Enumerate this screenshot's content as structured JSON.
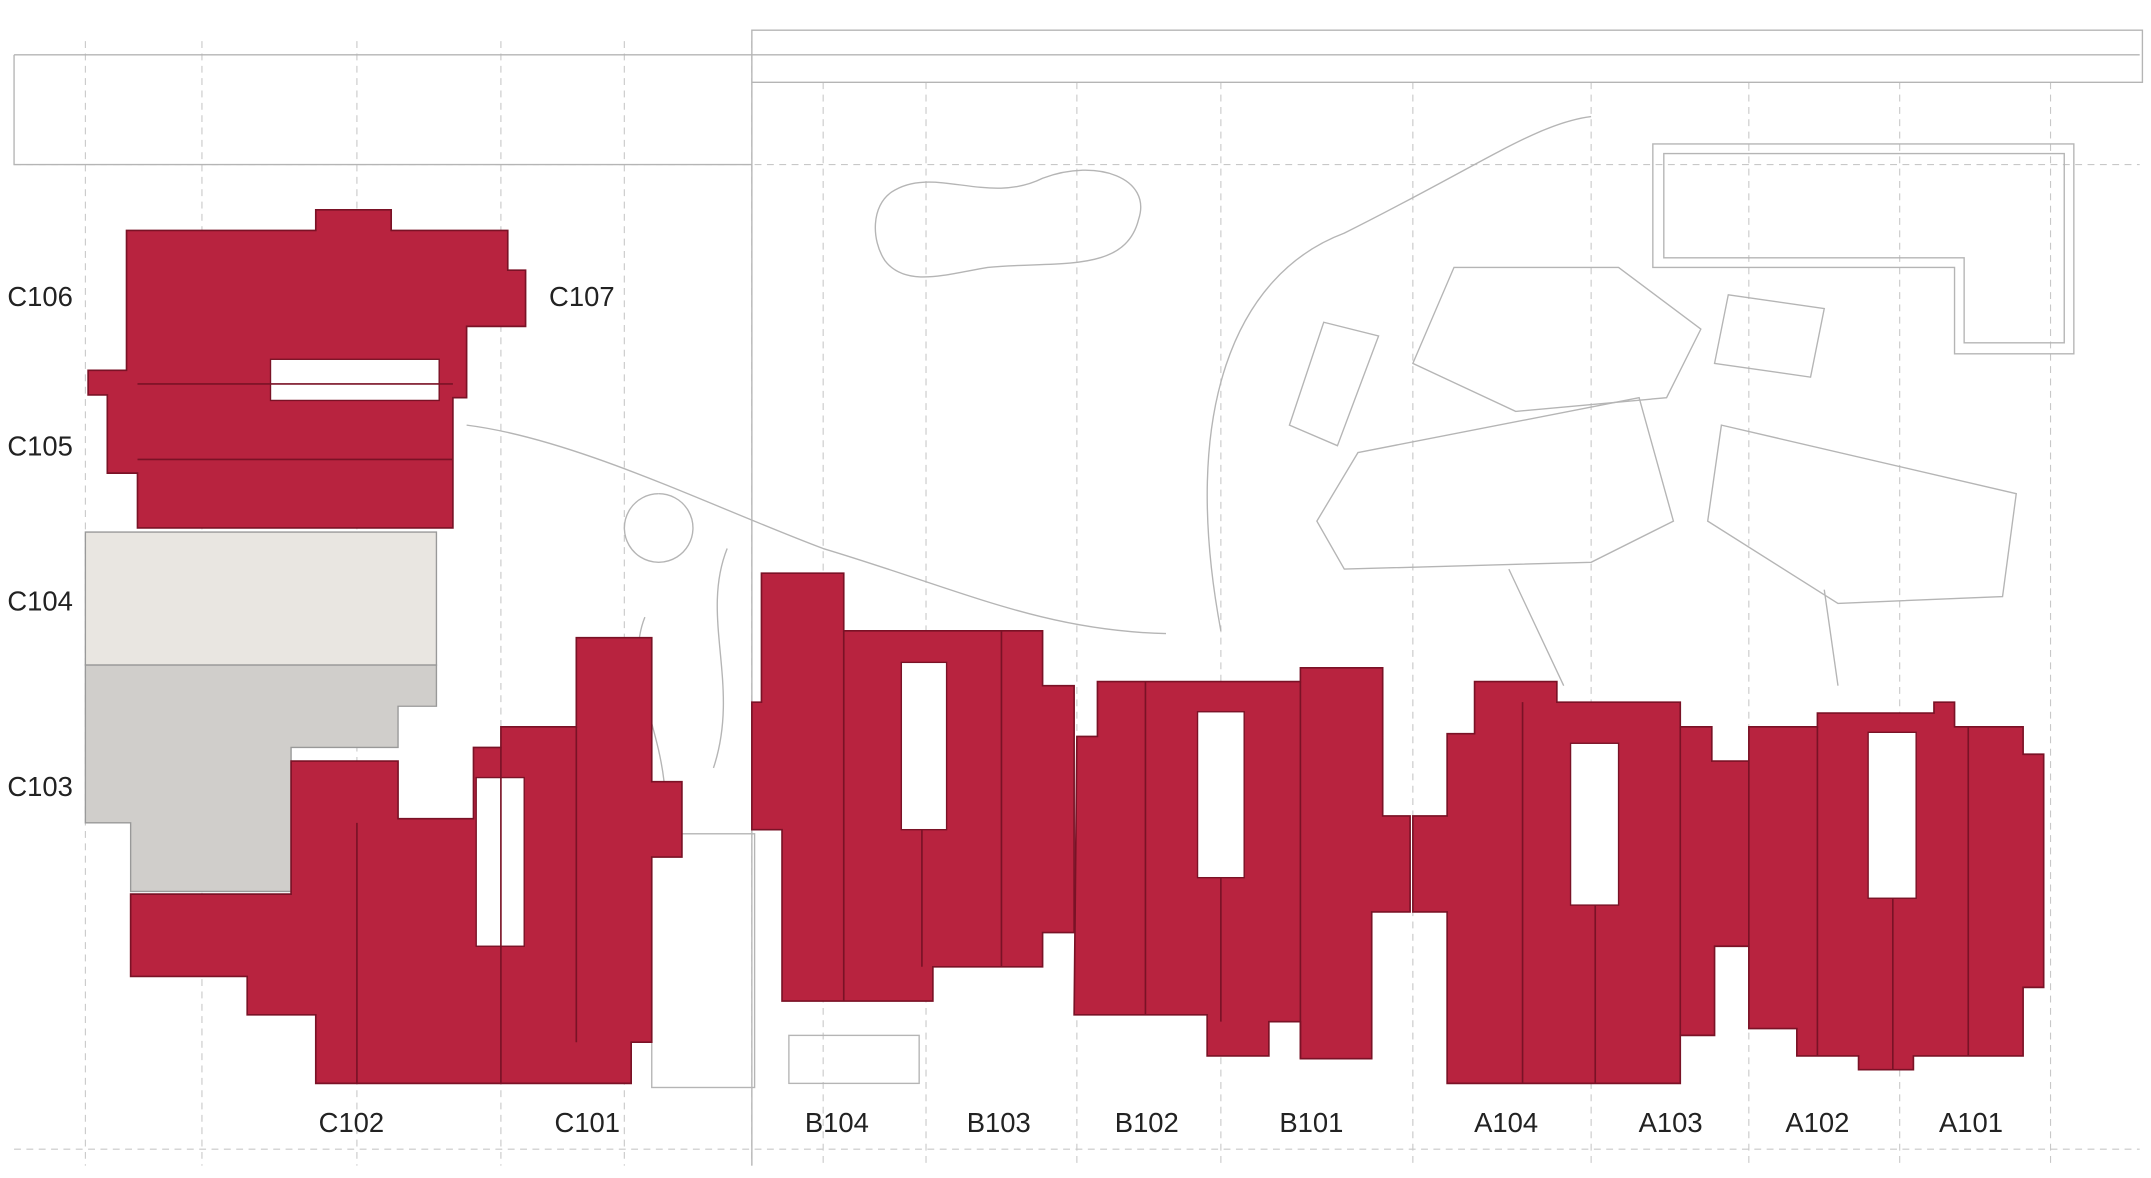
{
  "unit_labels": [
    "C106",
    "C107",
    "C105",
    "C104",
    "C103",
    "C102",
    "C101",
    "B104",
    "B103",
    "B102",
    "B101",
    "A104",
    "A103",
    "A102",
    "A101"
  ]
}
